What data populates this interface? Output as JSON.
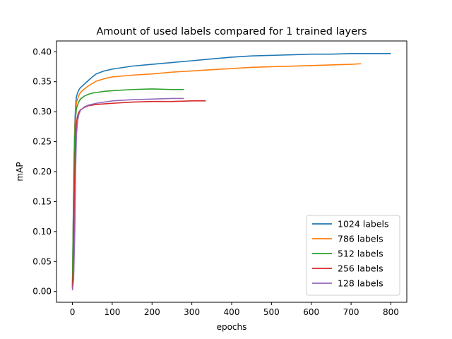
{
  "chart_data": {
    "type": "line",
    "title": "Amount of used labels compared for 1 trained layers",
    "xlabel": "epochs",
    "ylabel": "mAP",
    "xlim": [
      -40,
      840
    ],
    "ylim": [
      -0.018,
      0.418
    ],
    "xticks": [
      0,
      100,
      200,
      300,
      400,
      500,
      600,
      700,
      800
    ],
    "yticks": [
      0.0,
      0.05,
      0.1,
      0.15,
      0.2,
      0.25,
      0.3,
      0.35,
      0.4
    ],
    "xtick_labels": [
      "0",
      "100",
      "200",
      "300",
      "400",
      "500",
      "600",
      "700",
      "800"
    ],
    "ytick_labels": [
      "0.00",
      "0.05",
      "0.10",
      "0.15",
      "0.20",
      "0.25",
      "0.30",
      "0.35",
      "0.40"
    ],
    "grid": false,
    "legend_position": "lower-right",
    "series": [
      {
        "name": "1024 labels",
        "color": "#1f77b4",
        "points": [
          [
            0,
            0.01
          ],
          [
            2,
            0.12
          ],
          [
            4,
            0.22
          ],
          [
            6,
            0.28
          ],
          [
            8,
            0.31
          ],
          [
            10,
            0.325
          ],
          [
            15,
            0.335
          ],
          [
            20,
            0.34
          ],
          [
            30,
            0.346
          ],
          [
            40,
            0.352
          ],
          [
            50,
            0.358
          ],
          [
            60,
            0.363
          ],
          [
            80,
            0.368
          ],
          [
            100,
            0.371
          ],
          [
            150,
            0.376
          ],
          [
            200,
            0.379
          ],
          [
            250,
            0.382
          ],
          [
            300,
            0.385
          ],
          [
            350,
            0.388
          ],
          [
            400,
            0.391
          ],
          [
            450,
            0.393
          ],
          [
            500,
            0.394
          ],
          [
            550,
            0.395
          ],
          [
            600,
            0.396
          ],
          [
            650,
            0.396
          ],
          [
            700,
            0.397
          ],
          [
            750,
            0.397
          ],
          [
            800,
            0.397
          ]
        ]
      },
      {
        "name": "786 labels",
        "color": "#ff7f0e",
        "points": [
          [
            0,
            0.008
          ],
          [
            2,
            0.11
          ],
          [
            4,
            0.21
          ],
          [
            6,
            0.27
          ],
          [
            8,
            0.3
          ],
          [
            10,
            0.315
          ],
          [
            15,
            0.325
          ],
          [
            20,
            0.332
          ],
          [
            30,
            0.338
          ],
          [
            40,
            0.343
          ],
          [
            50,
            0.347
          ],
          [
            60,
            0.351
          ],
          [
            80,
            0.355
          ],
          [
            100,
            0.358
          ],
          [
            150,
            0.361
          ],
          [
            200,
            0.363
          ],
          [
            250,
            0.366
          ],
          [
            300,
            0.368
          ],
          [
            350,
            0.37
          ],
          [
            400,
            0.372
          ],
          [
            450,
            0.374
          ],
          [
            500,
            0.375
          ],
          [
            550,
            0.376
          ],
          [
            600,
            0.377
          ],
          [
            650,
            0.378
          ],
          [
            700,
            0.379
          ],
          [
            725,
            0.38
          ]
        ]
      },
      {
        "name": "512 labels",
        "color": "#2ca02c",
        "points": [
          [
            0,
            0.006
          ],
          [
            2,
            0.1
          ],
          [
            4,
            0.2
          ],
          [
            6,
            0.26
          ],
          [
            8,
            0.29
          ],
          [
            10,
            0.305
          ],
          [
            15,
            0.315
          ],
          [
            20,
            0.321
          ],
          [
            30,
            0.326
          ],
          [
            40,
            0.329
          ],
          [
            50,
            0.331
          ],
          [
            60,
            0.332
          ],
          [
            80,
            0.334
          ],
          [
            100,
            0.335
          ],
          [
            150,
            0.337
          ],
          [
            200,
            0.338
          ],
          [
            250,
            0.337
          ],
          [
            280,
            0.337
          ]
        ]
      },
      {
        "name": "256 labels",
        "color": "#d62728",
        "points": [
          [
            0,
            0.004
          ],
          [
            3,
            0.05
          ],
          [
            5,
            0.15
          ],
          [
            7,
            0.23
          ],
          [
            9,
            0.27
          ],
          [
            12,
            0.29
          ],
          [
            15,
            0.298
          ],
          [
            20,
            0.303
          ],
          [
            30,
            0.307
          ],
          [
            40,
            0.31
          ],
          [
            50,
            0.311
          ],
          [
            60,
            0.312
          ],
          [
            80,
            0.313
          ],
          [
            100,
            0.314
          ],
          [
            150,
            0.316
          ],
          [
            200,
            0.317
          ],
          [
            250,
            0.317
          ],
          [
            300,
            0.318
          ],
          [
            335,
            0.318
          ]
        ]
      },
      {
        "name": "128 labels",
        "color": "#9467bd",
        "points": [
          [
            0,
            0.002
          ],
          [
            3,
            0.02
          ],
          [
            6,
            0.1
          ],
          [
            8,
            0.2
          ],
          [
            10,
            0.26
          ],
          [
            13,
            0.285
          ],
          [
            16,
            0.295
          ],
          [
            20,
            0.302
          ],
          [
            30,
            0.308
          ],
          [
            40,
            0.311
          ],
          [
            60,
            0.314
          ],
          [
            80,
            0.316
          ],
          [
            100,
            0.318
          ],
          [
            150,
            0.32
          ],
          [
            200,
            0.321
          ],
          [
            250,
            0.322
          ],
          [
            280,
            0.322
          ]
        ]
      }
    ]
  }
}
